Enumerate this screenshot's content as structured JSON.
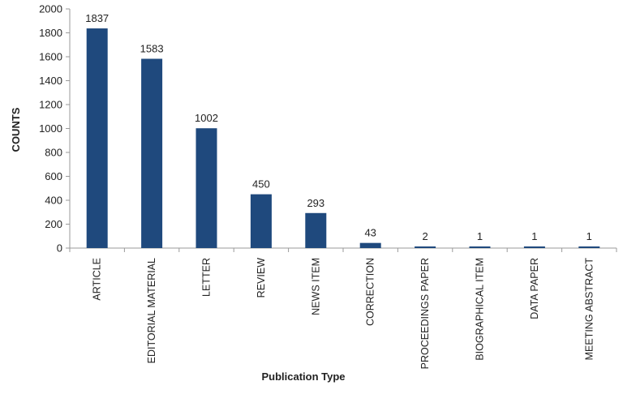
{
  "chart_data": {
    "type": "bar",
    "title": "",
    "xlabel": "Publication Type",
    "ylabel": "COUNTS",
    "categories": [
      "ARTICLE",
      "EDITORIAL MATERIAL",
      "LETTER",
      "REVIEW",
      "NEWS ITEM",
      "CORRECTION",
      "PROCEEDINGS PAPER",
      "BIOGRAPHICAL ITEM",
      "DATA PAPER",
      "MEETING ABSTRACT"
    ],
    "values": [
      1837,
      1583,
      1002,
      450,
      293,
      43,
      2,
      1,
      1,
      1
    ],
    "data_labels": [
      "1837",
      "1583",
      "1002",
      "450",
      "293",
      "43",
      "2",
      "1",
      "1",
      "1"
    ],
    "ylim": [
      0,
      2000
    ],
    "yticks": [
      "0",
      "200",
      "400",
      "600",
      "800",
      "1000",
      "1200",
      "1400",
      "1600",
      "1800",
      "2000"
    ],
    "grid": false,
    "legend": "none",
    "bar_color": "#1f497d"
  }
}
